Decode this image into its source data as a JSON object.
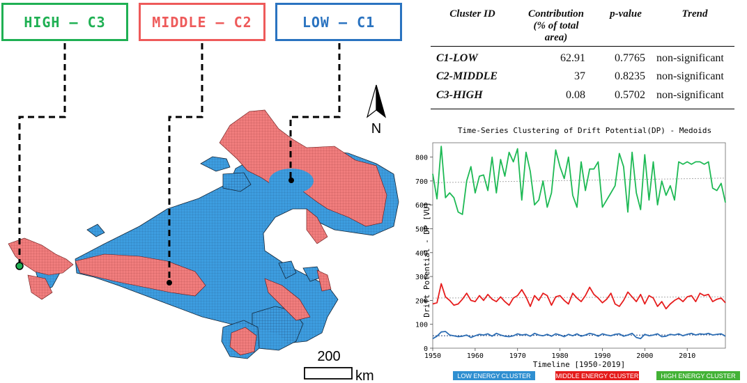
{
  "cluster_boxes": {
    "high": {
      "label": "HIGH – C3",
      "color": "#1fb053"
    },
    "middle": {
      "label": "MIDDLE – C2",
      "color": "#ee5a5a"
    },
    "low": {
      "label": "LOW – C1",
      "color": "#2a73c0"
    }
  },
  "map": {
    "north_label": "N",
    "scale_value": "200",
    "scale_unit": "km",
    "colors": {
      "low": "#3d9de0",
      "middle": "#f17d7d",
      "high": "#1fb053"
    }
  },
  "table": {
    "headers": [
      "Cluster ID",
      "Contribution (% of total area)",
      "p-value",
      "Trend"
    ],
    "header_lines": [
      "Contribution",
      "(% of total",
      "area)"
    ],
    "rows": [
      {
        "id": "C1-LOW",
        "contribution": "62.91",
        "p_value": "0.7765",
        "trend": "non-significant"
      },
      {
        "id": "C2-MIDDLE",
        "contribution": "37",
        "p_value": "0.8235",
        "trend": "non-significant"
      },
      {
        "id": "C3-HIGH",
        "contribution": "0.08",
        "p_value": "0.5702",
        "trend": "non-significant"
      }
    ]
  },
  "chart_data": {
    "type": "line",
    "title": "Time-Series Clustering of Drift Potential(DP) - Medoids",
    "xlabel": "Timeline [1950-2019]",
    "ylabel": "Drift Potential - DP [VU]",
    "xlim": [
      1950,
      2019
    ],
    "ylim": [
      0,
      860
    ],
    "xticks": [
      1950,
      1960,
      1970,
      1980,
      1990,
      2000,
      2010
    ],
    "yticks": [
      0,
      100,
      200,
      300,
      400,
      500,
      600,
      700,
      800
    ],
    "x_start": 1950,
    "series": [
      {
        "name": "HIGH ENERGY CLUSTER",
        "color": "#1db954",
        "trend": [
          693,
          712
        ],
        "values": [
          730,
          625,
          845,
          630,
          650,
          630,
          570,
          560,
          700,
          760,
          650,
          720,
          725,
          660,
          800,
          650,
          790,
          720,
          820,
          780,
          835,
          620,
          820,
          740,
          600,
          620,
          700,
          590,
          650,
          830,
          760,
          710,
          800,
          640,
          590,
          780,
          660,
          750,
          750,
          780,
          590,
          620,
          650,
          680,
          815,
          760,
          570,
          820,
          650,
          580,
          810,
          620,
          780,
          600,
          700,
          640,
          680,
          620,
          780,
          770,
          780,
          770,
          780,
          780,
          770,
          780,
          670,
          660,
          690,
          610
        ]
      },
      {
        "name": "MIDDLE ENERGY CLUSTER",
        "color": "#e61c1c",
        "trend": [
          210,
          215
        ],
        "values": [
          185,
          190,
          270,
          215,
          200,
          180,
          185,
          205,
          230,
          200,
          195,
          220,
          200,
          225,
          205,
          195,
          215,
          195,
          180,
          210,
          220,
          245,
          215,
          175,
          220,
          200,
          230,
          220,
          180,
          215,
          220,
          200,
          185,
          230,
          210,
          195,
          220,
          255,
          225,
          210,
          190,
          205,
          230,
          185,
          175,
          200,
          235,
          215,
          195,
          225,
          185,
          220,
          210,
          175,
          195,
          165,
          185,
          200,
          210,
          195,
          215,
          220,
          195,
          230,
          220,
          225,
          195,
          205,
          210,
          190
        ]
      },
      {
        "name": "LOW ENERGY CLUSTER",
        "color": "#2b6cb3",
        "trend": [
          52,
          56
        ],
        "values": [
          40,
          50,
          68,
          70,
          55,
          52,
          48,
          50,
          55,
          45,
          52,
          58,
          55,
          60,
          50,
          62,
          55,
          50,
          48,
          52,
          60,
          55,
          58,
          50,
          62,
          55,
          52,
          58,
          50,
          60,
          55,
          48,
          58,
          52,
          60,
          50,
          55,
          62,
          58,
          50,
          60,
          55,
          52,
          58,
          60,
          50,
          55,
          62,
          45,
          40,
          58,
          52,
          55,
          60,
          48,
          50,
          58,
          55,
          60,
          52,
          58,
          62,
          55,
          60,
          58,
          62,
          55,
          58,
          60,
          50
        ]
      }
    ],
    "legend": [
      "LOW ENERGY CLUSTER",
      "MIDDLE ENERGY CLUSTER",
      "HIGH ENERGY CLUSTER"
    ],
    "legend_colors": [
      "#2f8fd1",
      "#e41b1b",
      "#43b236"
    ]
  }
}
